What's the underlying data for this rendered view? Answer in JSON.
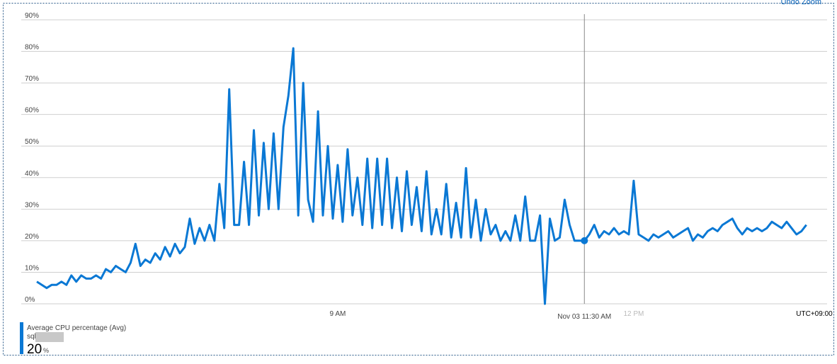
{
  "chart_data": {
    "type": "line",
    "x": [
      5.95,
      6,
      6.05,
      6.1,
      6.15,
      6.2,
      6.25,
      6.3,
      6.35,
      6.4,
      6.45,
      6.5,
      6.55,
      6.6,
      6.65,
      6.7,
      6.75,
      6.8,
      6.85,
      6.9,
      6.95,
      7,
      7.05,
      7.1,
      7.15,
      7.2,
      7.25,
      7.3,
      7.35,
      7.4,
      7.45,
      7.5,
      7.55,
      7.6,
      7.65,
      7.7,
      7.75,
      7.8,
      7.85,
      7.9,
      7.95,
      8,
      8.05,
      8.1,
      8.15,
      8.2,
      8.25,
      8.3,
      8.35,
      8.4,
      8.45,
      8.5,
      8.55,
      8.6,
      8.65,
      8.7,
      8.75,
      8.8,
      8.85,
      8.9,
      8.95,
      9,
      9.05,
      9.1,
      9.15,
      9.2,
      9.25,
      9.3,
      9.35,
      9.4,
      9.45,
      9.5,
      9.55,
      9.6,
      9.65,
      9.7,
      9.75,
      9.8,
      9.85,
      9.9,
      9.95,
      10,
      10.05,
      10.1,
      10.15,
      10.2,
      10.25,
      10.3,
      10.35,
      10.4,
      10.45,
      10.5,
      10.55,
      10.6,
      10.65,
      10.7,
      10.75,
      10.8,
      10.85,
      10.9,
      10.95,
      11,
      11.05,
      11.1,
      11.15,
      11.2,
      11.25,
      11.3,
      11.35,
      11.4,
      11.45,
      11.5,
      11.55,
      11.6,
      11.65,
      11.7,
      11.75,
      11.8,
      11.85,
      11.9,
      11.95,
      12,
      12.05,
      12.1,
      12.15,
      12.2,
      12.25,
      12.3,
      12.35,
      12.4,
      12.45,
      12.5,
      12.55,
      12.6,
      12.65,
      12.7,
      12.75,
      12.8,
      12.85,
      12.9,
      12.95,
      13,
      13.05,
      13.1,
      13.15,
      13.2,
      13.25,
      13.3,
      13.35,
      13.4,
      13.45,
      13.5,
      13.55,
      13.6,
      13.65,
      13.7,
      13.75
    ],
    "series": [
      {
        "name": "Average CPU percentage (Avg)",
        "color": "#0a78d4",
        "values": [
          7,
          6,
          5,
          6,
          6,
          7,
          6,
          9,
          7,
          9,
          8,
          8,
          9,
          8,
          11,
          10,
          12,
          11,
          10,
          13,
          19,
          12,
          14,
          13,
          16,
          14,
          18,
          15,
          19,
          16,
          18,
          27,
          19,
          24,
          20,
          25,
          20,
          38,
          24,
          68,
          25,
          25,
          45,
          25,
          55,
          28,
          51,
          30,
          54,
          30,
          56,
          66,
          81,
          28,
          70,
          33,
          26,
          61,
          28,
          50,
          27,
          44,
          26,
          49,
          28,
          40,
          25,
          46,
          24,
          46,
          25,
          46,
          24,
          40,
          23,
          42,
          25,
          37,
          23,
          42,
          22,
          30,
          22,
          38,
          21,
          32,
          21,
          43,
          21,
          33,
          20,
          30,
          22,
          25,
          20,
          23,
          20,
          28,
          20,
          34,
          20,
          20,
          28,
          0,
          27,
          20,
          21,
          33,
          25,
          20,
          20,
          20,
          22,
          25,
          21,
          23,
          22,
          24,
          22,
          23,
          22,
          39,
          22,
          21,
          20,
          22,
          21,
          22,
          23,
          21,
          22,
          23,
          24,
          20,
          22,
          21,
          23,
          24,
          23,
          25,
          26,
          27,
          24,
          22,
          24,
          23,
          24,
          23,
          24,
          26,
          25,
          24,
          26,
          24,
          22,
          23,
          25
        ]
      }
    ],
    "xlim": [
      5.95,
      13.96
    ],
    "xticks": [
      {
        "value": 9,
        "label": "9 AM"
      },
      {
        "value": 12,
        "label": "12 PM"
      }
    ],
    "ylim": [
      0,
      90
    ],
    "yticks": [
      {
        "value": 0,
        "label": "0%"
      },
      {
        "value": 10,
        "label": "10%"
      },
      {
        "value": 20,
        "label": "20%"
      },
      {
        "value": 30,
        "label": "30%"
      },
      {
        "value": 40,
        "label": "40%"
      },
      {
        "value": 50,
        "label": "50%"
      },
      {
        "value": 60,
        "label": "60%"
      },
      {
        "value": 70,
        "label": "70%"
      },
      {
        "value": 80,
        "label": "80%"
      },
      {
        "value": 90,
        "label": "90%"
      }
    ],
    "grid": true,
    "hover": {
      "x": 11.5,
      "label": "Nov 03 11:30 AM"
    },
    "timezone": "UTC+09:00",
    "legend": {
      "subtitle": "sql",
      "value": 20,
      "unit": "%"
    }
  },
  "toolbar": {
    "undo_zoom": "Undo Zoom"
  }
}
